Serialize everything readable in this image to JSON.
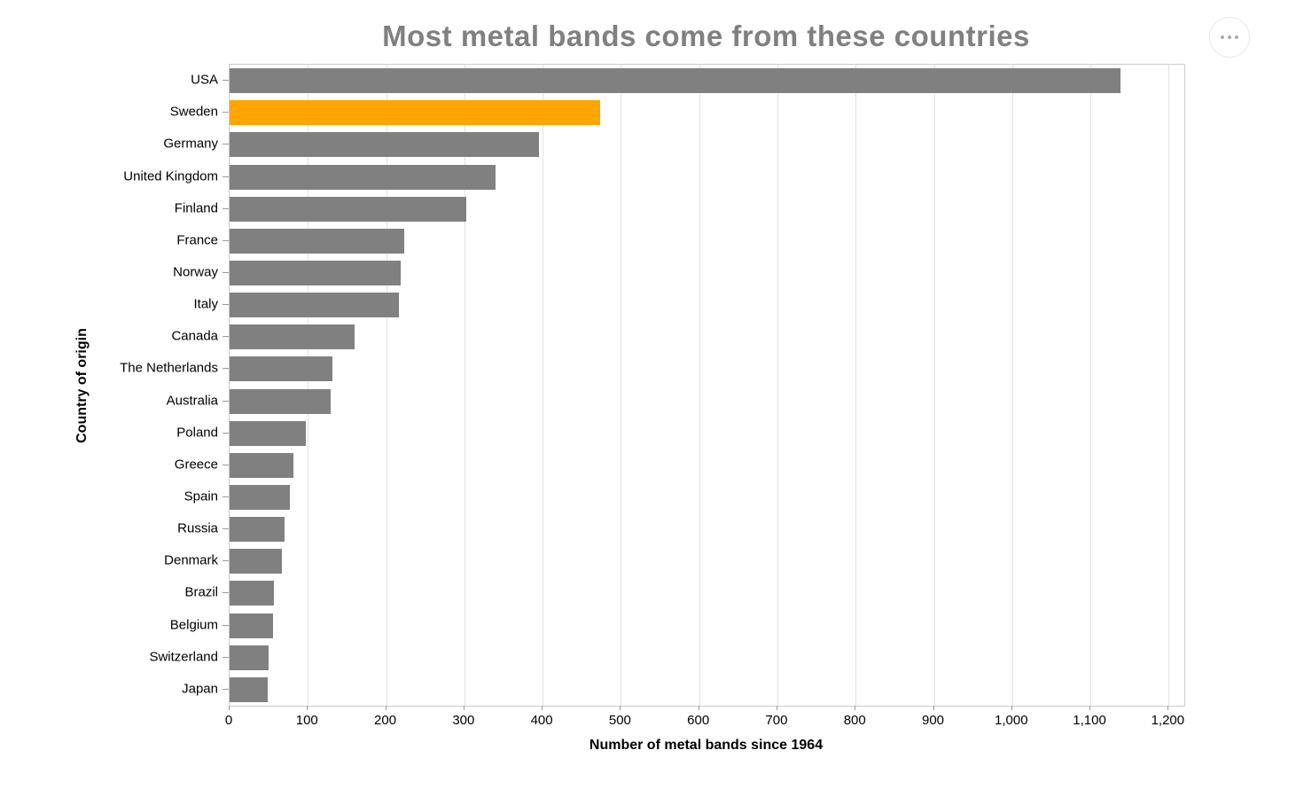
{
  "title": "Most metal bands come from these countries",
  "menu_button": {
    "icon": "ellipsis-icon",
    "tooltip": ""
  },
  "chart_data": {
    "type": "bar",
    "orientation": "horizontal",
    "title": "Most metal bands come from these countries",
    "xlabel": "Number of metal bands since 1964",
    "ylabel": "Country of origin",
    "xlim": [
      0,
      1220
    ],
    "x_ticks": [
      0,
      100,
      200,
      300,
      400,
      500,
      600,
      700,
      800,
      900,
      1000,
      1100,
      1200
    ],
    "grid": true,
    "legend": "none",
    "categories": [
      "USA",
      "Sweden",
      "Germany",
      "United Kingdom",
      "Finland",
      "France",
      "Norway",
      "Italy",
      "Canada",
      "The Netherlands",
      "Australia",
      "Poland",
      "Greece",
      "Spain",
      "Russia",
      "Denmark",
      "Brazil",
      "Belgium",
      "Switzerland",
      "Japan"
    ],
    "values": [
      1138,
      473,
      395,
      340,
      302,
      223,
      219,
      216,
      160,
      131,
      129,
      97,
      81,
      77,
      70,
      67,
      57,
      56,
      50,
      49
    ],
    "highlight_category": "Sweden",
    "colors": {
      "bar": "#808080",
      "highlight": "#FFA500"
    }
  }
}
